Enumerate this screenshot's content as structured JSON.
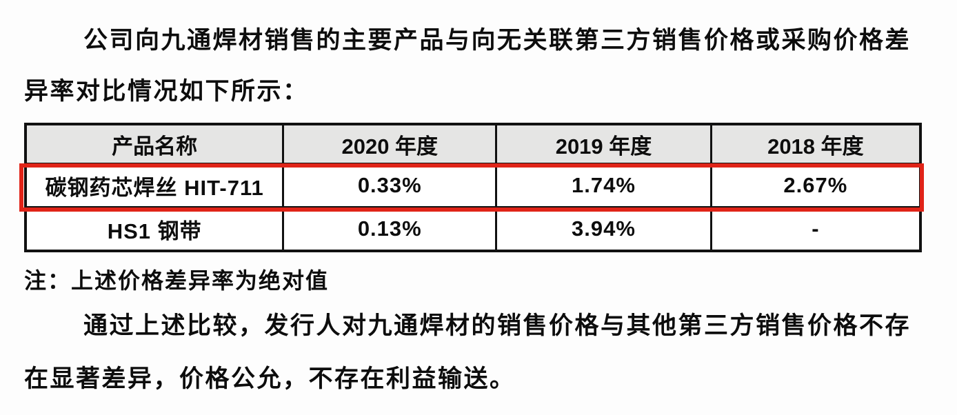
{
  "page": {
    "background_color": "#fdfdfd",
    "text_color": "#0d0d0d",
    "highlight_color": "#e02418",
    "table_border_color": "#111111",
    "table_header_bg": "#e5e5e4"
  },
  "paragraphs": {
    "intro": "公司向九通焊材销售的主要产品与向无关联第三方销售价格或采购价格差异率对比情况如下所示：",
    "conclusion": "通过上述比较，发行人对九通焊材的销售价格与其他第三方销售价格不存在显著差异，价格公允，不存在利益输送。"
  },
  "note": "注：上述价格差异率为绝对值",
  "chart_data": {
    "type": "table",
    "headers": [
      "产品名称",
      "2020 年度",
      "2019 年度",
      "2018 年度"
    ],
    "rows": [
      {
        "cells": [
          "碳钢药芯焊丝 HIT-711",
          "0.33%",
          "1.74%",
          "2.67%"
        ],
        "highlighted": true
      },
      {
        "cells": [
          "HS1 钢带",
          "0.13%",
          "3.94%",
          "-"
        ],
        "highlighted": false
      }
    ]
  }
}
